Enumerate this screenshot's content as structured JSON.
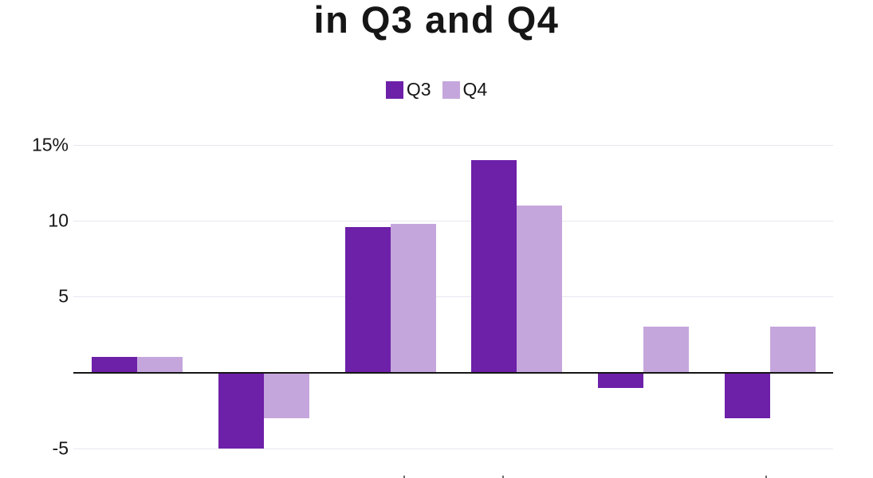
{
  "title": "in Q3 and Q4",
  "legend": [
    {
      "label": "Q3",
      "color": "#6d20a8"
    },
    {
      "label": "Q4",
      "color": "#c5a6dc"
    }
  ],
  "chart_data": {
    "type": "bar",
    "title": "in Q3 and Q4",
    "subtitle_note": "first line of title cut off above top edge of screenshot",
    "categories": [
      "",
      "",
      "",
      "",
      "",
      ""
    ],
    "categories_note": "x-axis category labels are cut off at the bottom edge; only tiny ascender tips visible",
    "series": [
      {
        "name": "Q3",
        "color": "#6d20a8",
        "values": [
          1,
          -5,
          9.6,
          14,
          -1,
          -3
        ]
      },
      {
        "name": "Q4",
        "color": "#c5a6dc",
        "values": [
          1,
          -3,
          9.8,
          11,
          3,
          3
        ]
      }
    ],
    "y_ticks": [
      {
        "label": "15%",
        "value": 15
      },
      {
        "label": "10",
        "value": 10
      },
      {
        "label": "5",
        "value": 5
      },
      {
        "label": "-5",
        "value": -5
      }
    ],
    "ylim": [
      -7,
      16.7
    ],
    "unit": "percent",
    "grid": true,
    "zero_axis": true,
    "legend_position": "top-center",
    "colors": {
      "background": "#ffffff",
      "gridline": "#eae5ef",
      "zero_axis": "#161616",
      "text": "#161616"
    }
  }
}
